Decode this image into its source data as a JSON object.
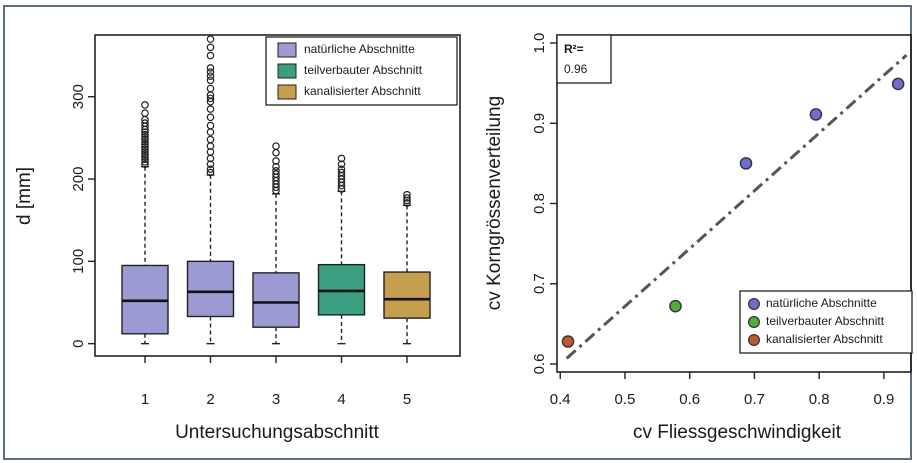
{
  "chart_data": [
    {
      "type": "box",
      "xlabel": "Untersuchungsabschnitt",
      "ylabel": "d [mm]",
      "ylim": [
        -15,
        375
      ],
      "yticks": [
        "0",
        "100",
        "200",
        "300"
      ],
      "categories": [
        "1",
        "2",
        "3",
        "4",
        "5"
      ],
      "legend": {
        "placement": "top-right",
        "entries": [
          {
            "label": "natürliche Abschnitte",
            "color": "#9c9ad3"
          },
          {
            "label": "teilverbauter Abschnitt",
            "color": "#3a9f80"
          },
          {
            "label": "kanalisierter Abschnitt",
            "color": "#c4a04e"
          }
        ]
      },
      "boxes": [
        {
          "category": "1",
          "group": "natürliche Abschnitte",
          "min": 0,
          "q1": 12,
          "median": 52,
          "q3": 95,
          "whisker_high": 215,
          "outliers": [
            218,
            221,
            224,
            227,
            230,
            233,
            236,
            239,
            242,
            245,
            248,
            251,
            254,
            257,
            260,
            264,
            268,
            272,
            280,
            290
          ]
        },
        {
          "category": "2",
          "group": "natürliche Abschnitte",
          "min": 0,
          "q1": 33,
          "median": 63,
          "q3": 100,
          "whisker_high": 205,
          "outliers": [
            208,
            212,
            218,
            225,
            233,
            240,
            248,
            257,
            265,
            275,
            285,
            294,
            298,
            302,
            310,
            320,
            325,
            330,
            335,
            350,
            360,
            370
          ]
        },
        {
          "category": "3",
          "group": "natürliche Abschnitte",
          "min": 0,
          "q1": 20,
          "median": 50,
          "q3": 86,
          "whisker_high": 182,
          "outliers": [
            186,
            190,
            194,
            198,
            202,
            206,
            210,
            215,
            222,
            232,
            240
          ]
        },
        {
          "category": "4",
          "group": "teilverbauter Abschnitt",
          "min": 0,
          "q1": 35,
          "median": 64,
          "q3": 96,
          "whisker_high": 185,
          "outliers": [
            188,
            192,
            196,
            200,
            204,
            208,
            212,
            218,
            225
          ]
        },
        {
          "category": "5",
          "group": "kanalisierter Abschnitt",
          "min": 0,
          "q1": 31,
          "median": 54,
          "q3": 87,
          "whisker_high": 168,
          "outliers": [
            171,
            174,
            177,
            181
          ]
        }
      ]
    },
    {
      "type": "scatter",
      "xlabel": "cv Fliessgeschwindigkeit",
      "ylabel": "cv Korngrössenverteilung",
      "xlim": [
        0.395,
        0.945
      ],
      "ylim": [
        0.59,
        1.01
      ],
      "xticks": [
        "0.4",
        "0.5",
        "0.6",
        "0.7",
        "0.8",
        "0.9"
      ],
      "yticks": [
        "0.6",
        "0.7",
        "0.8",
        "0.9",
        "1.0"
      ],
      "annotation": {
        "r2_label": "R²=",
        "r2_value": "0.96"
      },
      "trendline": {
        "style": "dash-dot",
        "color": "#555555",
        "x": [
          0.41,
          0.935
        ],
        "y": [
          0.607,
          0.985
        ]
      },
      "legend": {
        "placement": "bottom-right",
        "entries": [
          {
            "label": "natürliche Abschnitte",
            "color": "#6f6cd1"
          },
          {
            "label": "teilverbauter Abschnitt",
            "color": "#4fae3c"
          },
          {
            "label": "kanalisierter Abschnitt",
            "color": "#c05a2e"
          }
        ]
      },
      "points": [
        {
          "x": 0.412,
          "y": 0.628,
          "group": "kanalisierter Abschnitt"
        },
        {
          "x": 0.578,
          "y": 0.672,
          "group": "teilverbauter Abschnitt"
        },
        {
          "x": 0.687,
          "y": 0.85,
          "group": "natürliche Abschnitte"
        },
        {
          "x": 0.795,
          "y": 0.911,
          "group": "natürliche Abschnitte"
        },
        {
          "x": 0.922,
          "y": 0.949,
          "group": "natürliche Abschnitte"
        }
      ]
    }
  ]
}
